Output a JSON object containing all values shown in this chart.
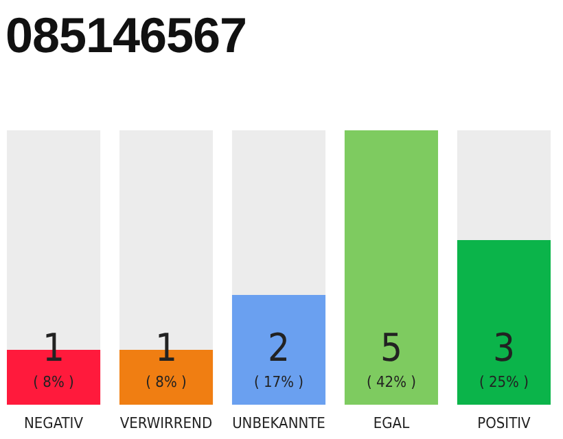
{
  "chart_data": {
    "type": "bar",
    "title": "085146567",
    "categories": [
      "NEGATIV",
      "VERWIRREND",
      "UNBEKANNTE",
      "EGAL",
      "POSITIV"
    ],
    "values": [
      1,
      1,
      2,
      5,
      3
    ],
    "colors": [
      "#ff1a3c",
      "#f07e12",
      "#6aa0f0",
      "#7ecb60",
      "#0bb44a"
    ],
    "data_labels": true,
    "annotations": [
      "( 8% )",
      "( 8% )",
      "( 17% )",
      "( 42% )",
      "( 25% )"
    ]
  }
}
